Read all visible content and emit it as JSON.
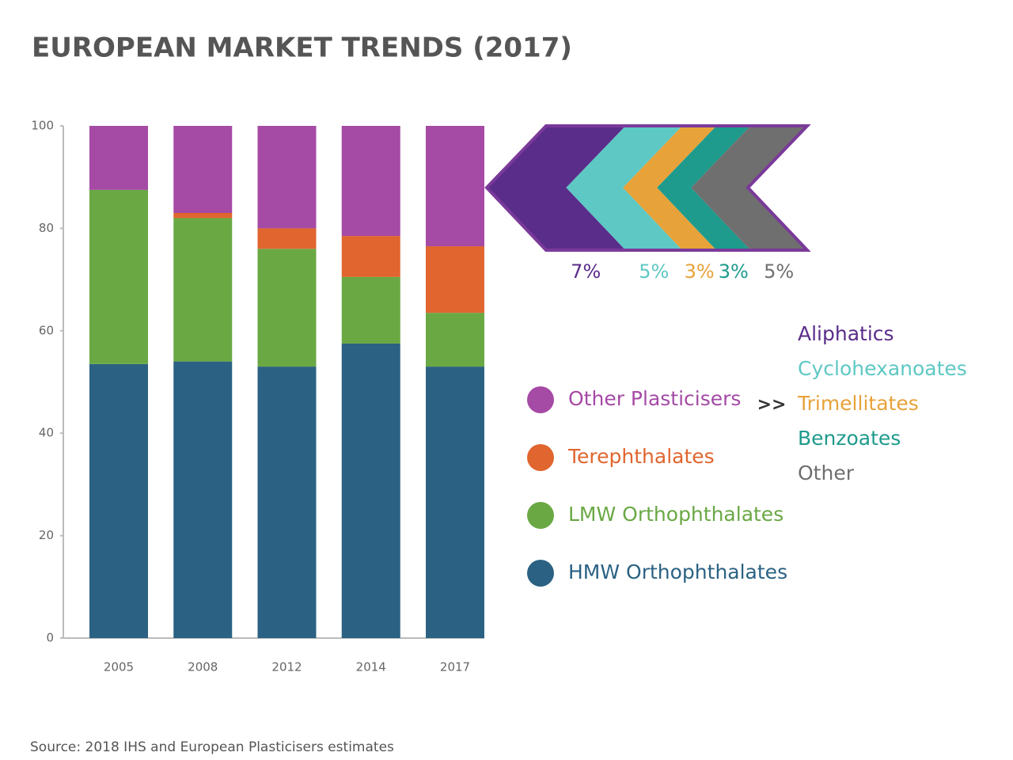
{
  "chart_data": {
    "type": "bar",
    "stacked": true,
    "title": "EUROPEAN MARKET TRENDS (2017)",
    "source": "Source: 2018 IHS and European Plasticisers estimates",
    "categories": [
      "2005",
      "2008",
      "2012",
      "2014",
      "2017"
    ],
    "series": [
      {
        "name": "HMW Orthophthalates",
        "color": "#2b6283",
        "values": [
          53.5,
          54,
          53,
          57.5,
          53
        ]
      },
      {
        "name": "LMW Orthophthalates",
        "color": "#6aa844",
        "values": [
          34,
          28,
          23,
          13,
          10.5
        ]
      },
      {
        "name": "Terephthalates",
        "color": "#e0652e",
        "values": [
          0,
          1,
          4,
          8,
          13
        ]
      },
      {
        "name": "Other Plasticisers",
        "color": "#a54aa5",
        "values": [
          12.5,
          17,
          20,
          21.5,
          23.5
        ]
      }
    ],
    "ylim": [
      0,
      100
    ],
    "yticks": [
      0,
      20,
      40,
      60,
      80,
      100
    ],
    "breakdown": {
      "connector": ">>",
      "names": [
        "Aliphatics",
        "Cyclohexanoates",
        "Trimellitates",
        "Benzoates",
        "Other"
      ],
      "values": [
        7,
        5,
        3,
        3,
        5
      ],
      "value_labels": [
        "7%",
        "5%",
        "3%",
        "3%",
        "5%"
      ],
      "colors": [
        "#5a2d8a",
        "#5ec8c4",
        "#e8a23a",
        "#1e9b8c",
        "#6f6f6f"
      ],
      "outline": "#7a3a9a"
    }
  }
}
